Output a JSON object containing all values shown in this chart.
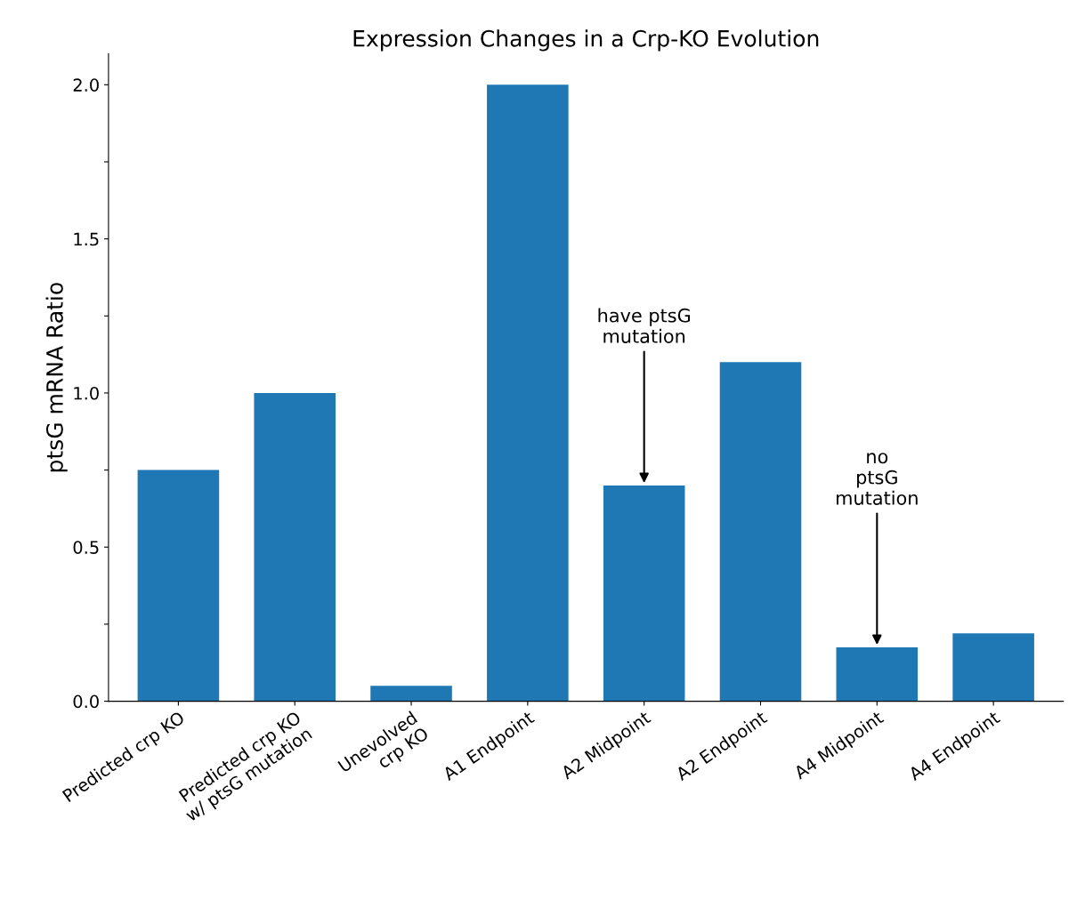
{
  "chart_data": {
    "type": "bar",
    "title": "Expression Changes in a Crp-KO Evolution",
    "ylabel": "ptsG mRNA Ratio",
    "categories": [
      "Predicted crp KO",
      "Predicted crp KO\nw/ ptsG mutation",
      "Unevolved\ncrp KO",
      "A1 Endpoint",
      "A2 Midpoint",
      "A2 Endpoint",
      "A4 Midpoint",
      "A4 Endpoint"
    ],
    "values": [
      0.75,
      1.0,
      0.05,
      2.0,
      0.7,
      1.1,
      0.175,
      0.22
    ],
    "color": "#1f77b4",
    "ylim": [
      0,
      2.1
    ],
    "yticks": [
      {
        "value": 0,
        "label": "0.0"
      },
      {
        "value": 0.25,
        "label": null
      },
      {
        "value": 0.5,
        "label": "0.5"
      },
      {
        "value": 0.75,
        "label": null
      },
      {
        "value": 1.0,
        "label": "1.0"
      },
      {
        "value": 1.25,
        "label": null
      },
      {
        "value": 1.5,
        "label": "1.5"
      },
      {
        "value": 1.75,
        "label": null
      },
      {
        "value": 2.0,
        "label": "2.0"
      }
    ],
    "annotations": [
      {
        "text": "have ptsG\nmutation",
        "x": "A2 Midpoint",
        "y": 0.7
      },
      {
        "text": "no\nptsG\nmutation",
        "x": "A4 Midpoint",
        "y": 0.175
      }
    ],
    "grid": false
  }
}
